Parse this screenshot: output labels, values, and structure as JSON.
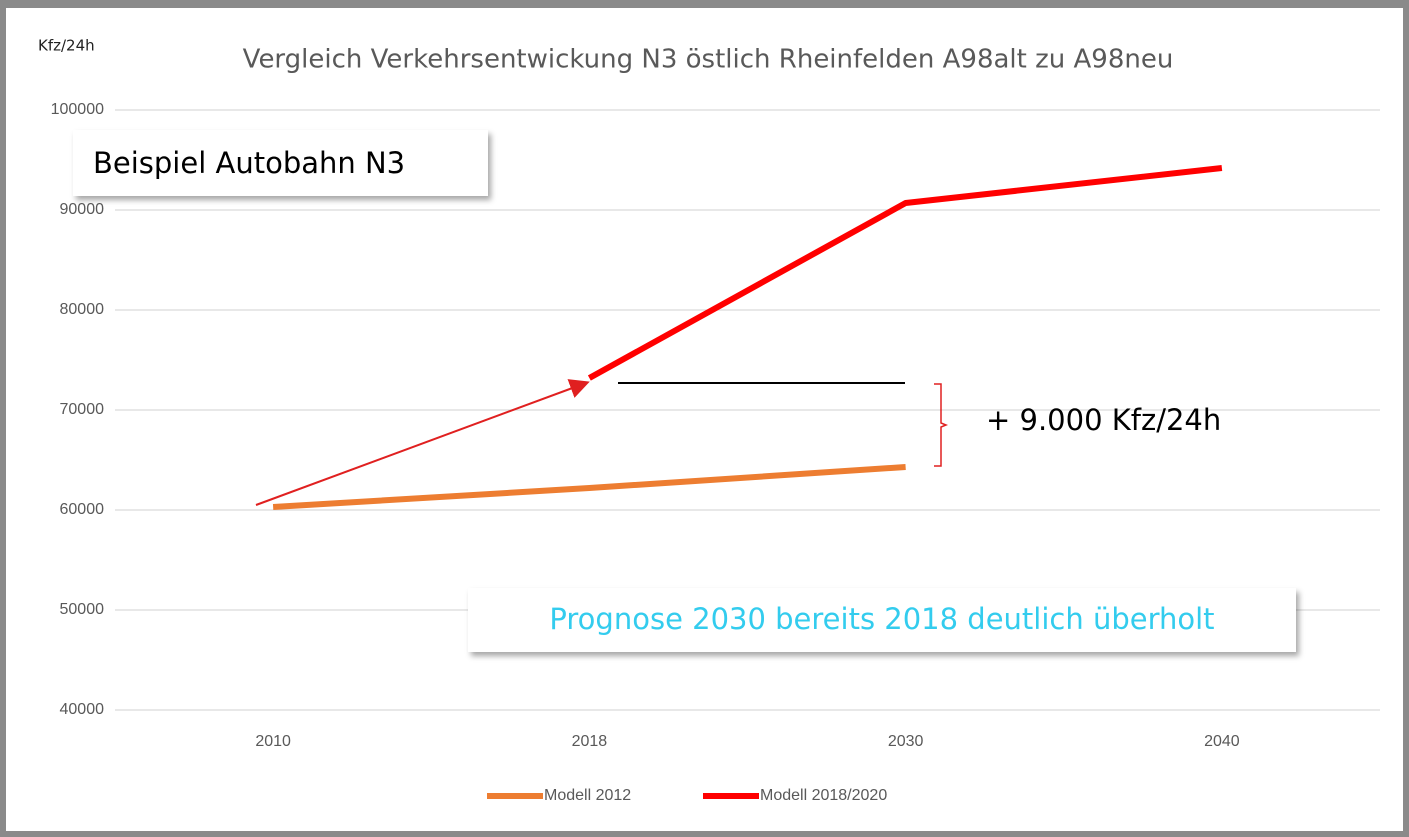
{
  "chart_data": {
    "type": "line",
    "title": "Vergleich Verkehrsentwickung N3 östlich Rheinfelden A98alt zu A98neu",
    "ylabel": "Kfz/24h",
    "categories": [
      "2010",
      "2018",
      "2030",
      "2040"
    ],
    "series": [
      {
        "name": "Modell 2012",
        "color": "#ed7d31",
        "values": [
          60300,
          62200,
          64300,
          null
        ]
      },
      {
        "name": "Modell 2018/2020",
        "color": "#ff0000",
        "values": [
          null,
          73200,
          90700,
          94200
        ]
      }
    ],
    "ylim": [
      40000,
      100000
    ],
    "yticks": [
      40000,
      50000,
      60000,
      70000,
      80000,
      90000,
      100000
    ],
    "grid": true,
    "legend": "bottom",
    "annotations": [
      "Beispiel Autobahn N3",
      "+ 9.000 Kfz/24h",
      "Prognose 2030 bereits 2018 deutlich überholt"
    ]
  }
}
